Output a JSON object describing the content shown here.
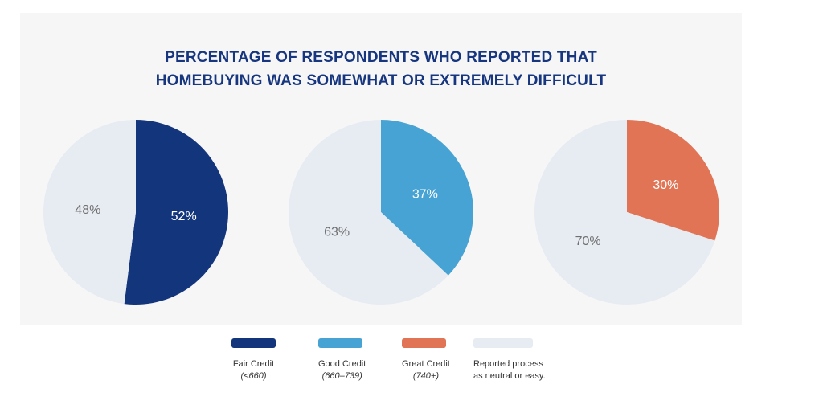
{
  "chart_data": {
    "type": "pie",
    "title": "PERCENTAGE OF RESPONDENTS WHO REPORTED THAT HOMEBUYING WAS SOMEWHAT OR EXTREMELY DIFFICULT",
    "title_lines": [
      "PERCENTAGE OF RESPONDENTS WHO REPORTED THAT",
      "HOMEBUYING WAS SOMEWHAT OR EXTREMELY DIFFICULT"
    ],
    "pies": [
      {
        "name": "Fair Credit (<660)",
        "slices": [
          {
            "label": "52%",
            "value": 52,
            "color": "#13357c",
            "text_color": "#ffffff"
          },
          {
            "label": "48%",
            "value": 48,
            "color": "#e7ebf2",
            "text_color": "#707070"
          }
        ]
      },
      {
        "name": "Good Credit (660–739)",
        "slices": [
          {
            "label": "37%",
            "value": 37,
            "color": "#47a3d3",
            "text_color": "#ffffff"
          },
          {
            "label": "63%",
            "value": 63,
            "color": "#e7ebf2",
            "text_color": "#707070"
          }
        ]
      },
      {
        "name": "Great Credit (740+)",
        "slices": [
          {
            "label": "30%",
            "value": 30,
            "color": "#e07455",
            "text_color": "#ffffff"
          },
          {
            "label": "70%",
            "value": 70,
            "color": "#e7ebf2",
            "text_color": "#707070"
          }
        ]
      }
    ],
    "legend": [
      {
        "name": "Fair Credit",
        "sub": "(<660)",
        "color": "#13357c"
      },
      {
        "name": "Good Credit",
        "sub": "(660–739)",
        "color": "#47a3d3"
      },
      {
        "name": "Great Credit",
        "sub": "(740+)",
        "color": "#e07455"
      },
      {
        "name": "Reported process",
        "sub": "as neutral or easy.",
        "color": "#e7ebf2"
      }
    ]
  }
}
